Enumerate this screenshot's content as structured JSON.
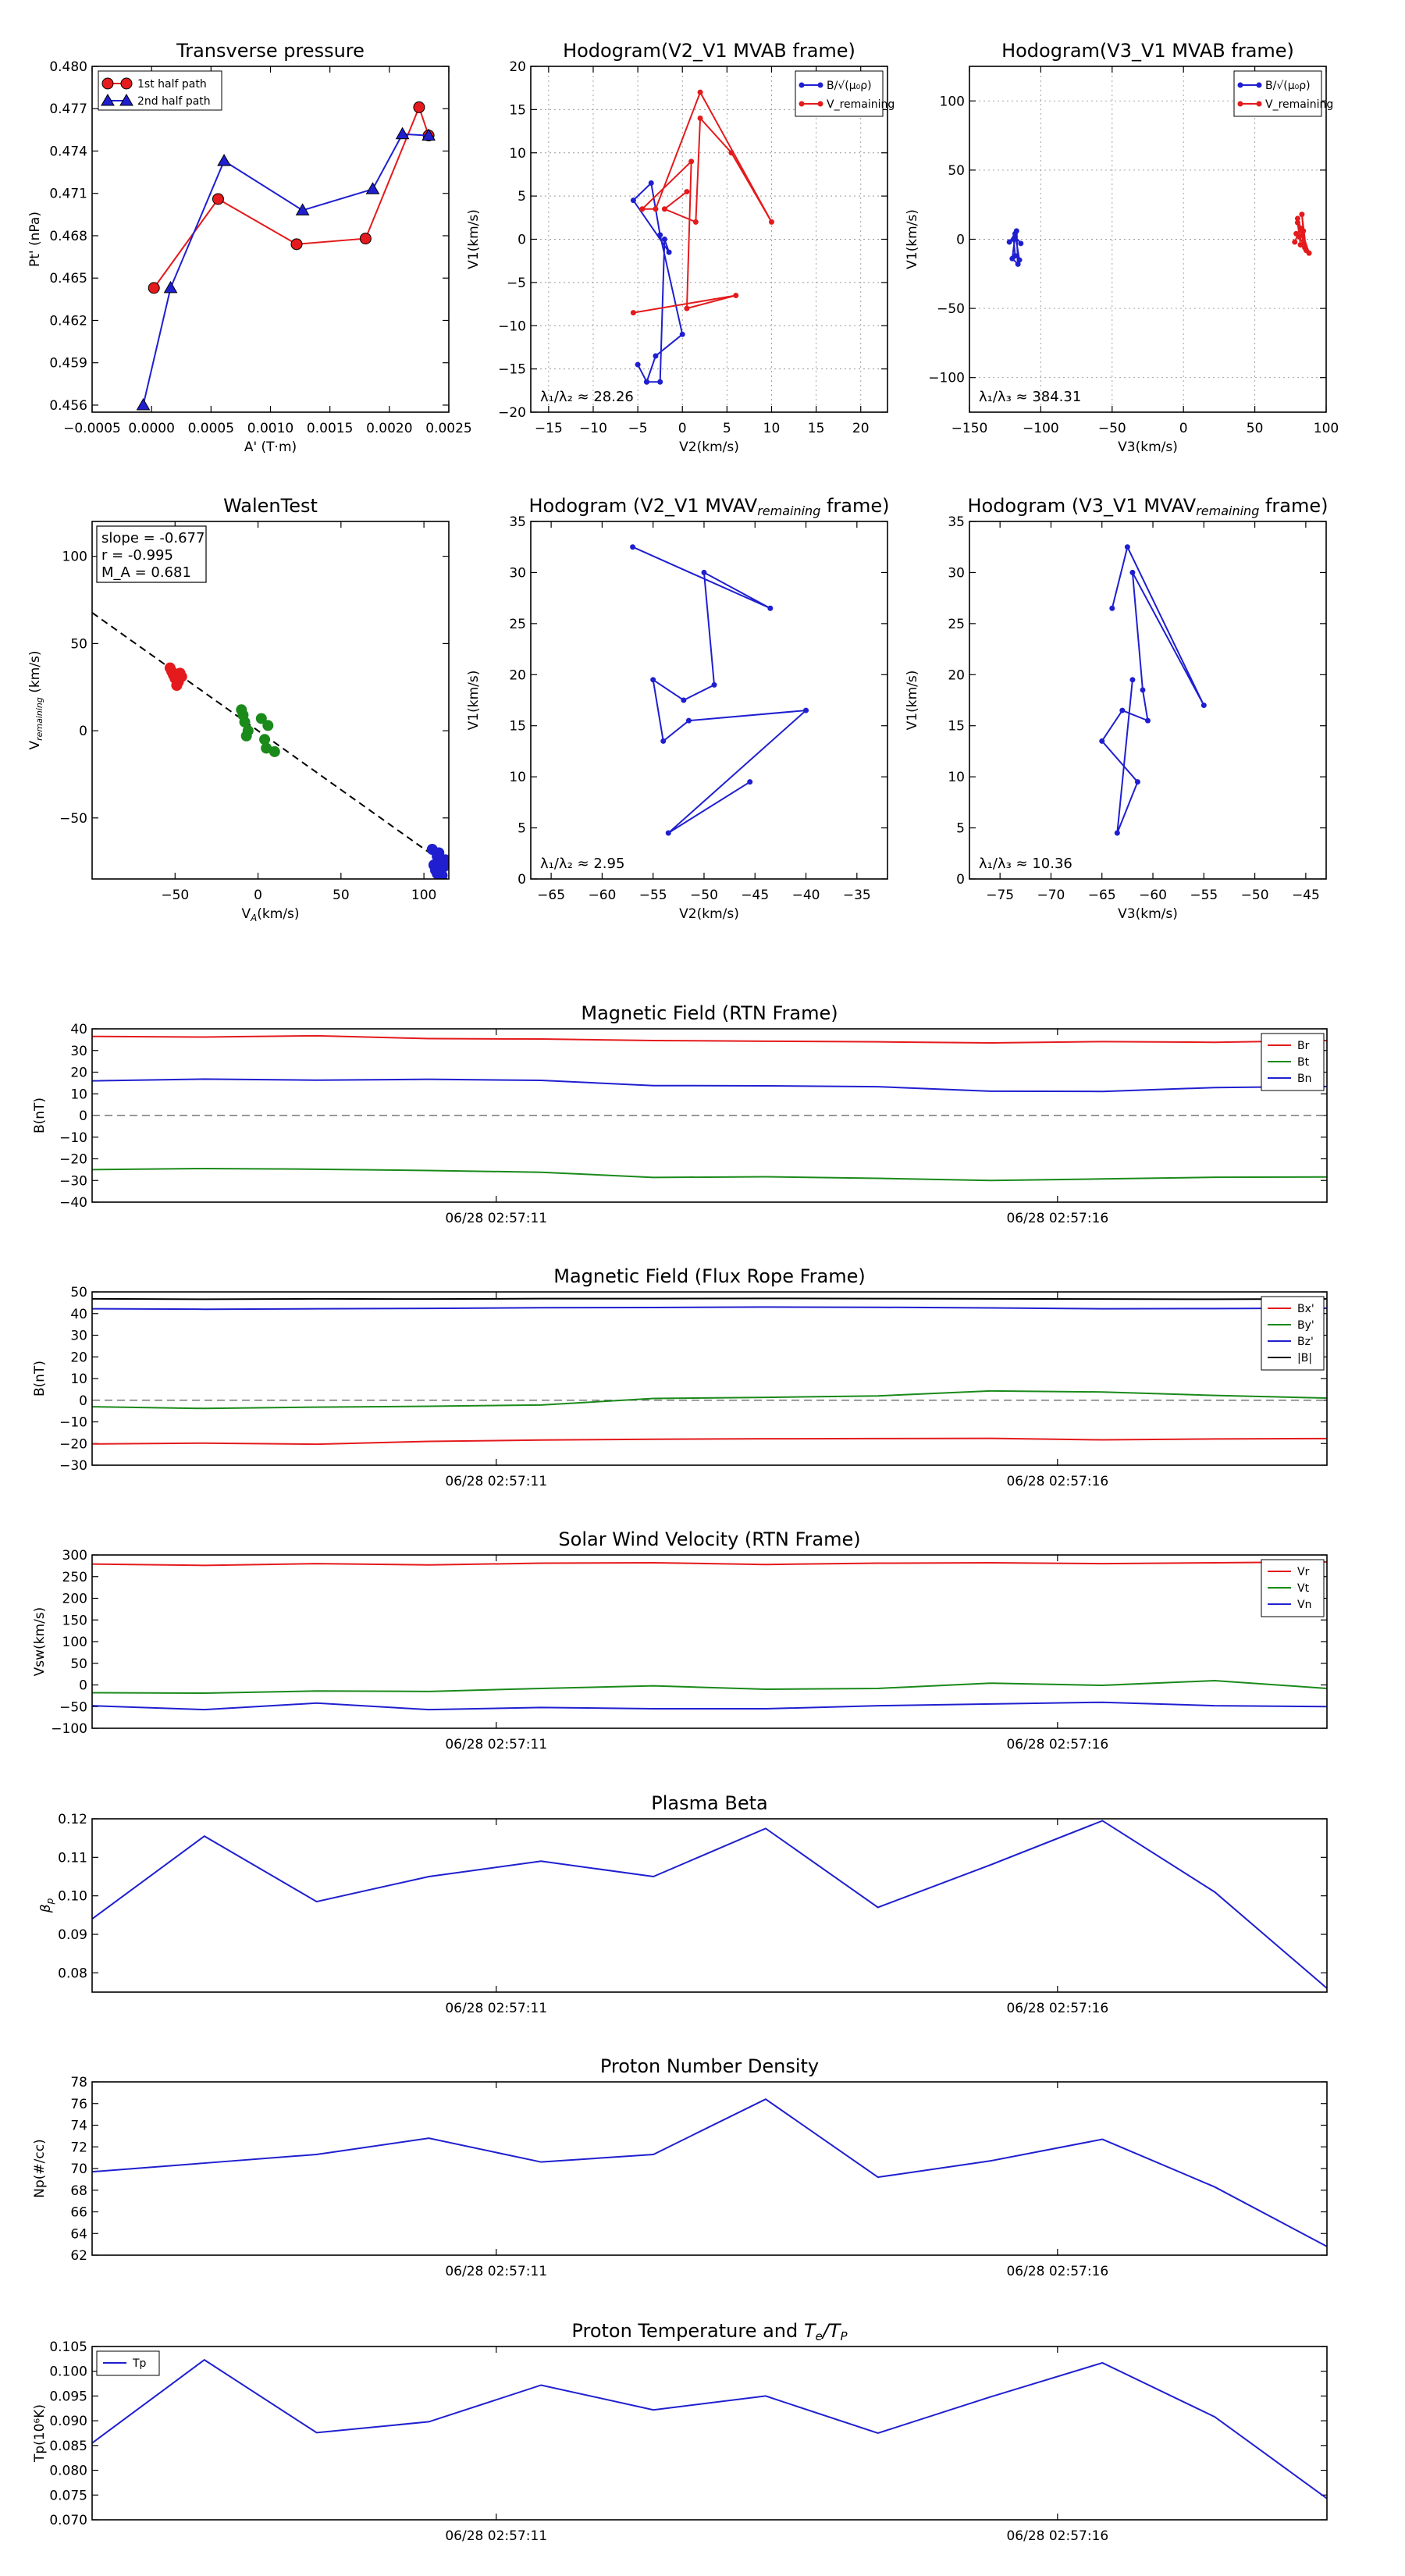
{
  "chart_data": [
    {
      "id": "pt",
      "type": "line",
      "title": "Transverse pressure",
      "xlabel": "A' (T·m)",
      "ylabel": "Pt' (nPa)",
      "xlim": [
        -0.0005,
        0.0025
      ],
      "ylim": [
        0.4555,
        0.48
      ],
      "xticks": [
        -0.0005,
        0.0,
        0.0005,
        0.001,
        0.0015,
        0.002,
        0.0025
      ],
      "xticklabels": [
        "−0.0005",
        "0.0000",
        "0.0005",
        "0.0010",
        "0.0015",
        "0.0020",
        "0.0025"
      ],
      "yticks": [
        0.456,
        0.459,
        0.462,
        0.465,
        0.468,
        0.471,
        0.474,
        0.477,
        0.48
      ],
      "yticklabels": [
        "0.456",
        "0.459",
        "0.462",
        "0.465",
        "0.468",
        "0.471",
        "0.474",
        "0.477",
        "0.480"
      ],
      "legend": "top-left",
      "grid": false,
      "series": [
        {
          "name": "1st half path",
          "color": "#e41a1c",
          "marker": "circle",
          "x": [
            2e-05,
            0.00056,
            0.00122,
            0.0018,
            0.00225,
            0.00233
          ],
          "y": [
            0.4643,
            0.4706,
            0.4674,
            0.4678,
            0.4771,
            0.4751
          ]
        },
        {
          "name": "2nd half path",
          "color": "#1f1fd0",
          "marker": "triangle",
          "x": [
            -7e-05,
            0.00016,
            0.00061,
            0.00127,
            0.00186,
            0.00211,
            0.00233
          ],
          "y": [
            0.456,
            0.4643,
            0.4733,
            0.4698,
            0.4713,
            0.4752,
            0.4751
          ]
        }
      ]
    },
    {
      "id": "h21",
      "type": "line",
      "title": "Hodogram(V2_V1 MVAB frame)",
      "xlabel": "V2(km/s)",
      "ylabel": "V1(km/s)",
      "xlim": [
        -17,
        23
      ],
      "ylim": [
        -20,
        20
      ],
      "xticks": [
        -15,
        -10,
        -5,
        0,
        5,
        10,
        15,
        20
      ],
      "xticklabels": [
        "−15",
        "−10",
        "−5",
        "0",
        "5",
        "10",
        "15",
        "20"
      ],
      "yticks": [
        -20,
        -15,
        -10,
        -5,
        0,
        5,
        10,
        15,
        20
      ],
      "yticklabels": [
        "−20",
        "−15",
        "−10",
        "−5",
        "0",
        "5",
        "10",
        "15",
        "20"
      ],
      "legend": "top-right",
      "grid": true,
      "annotation": "λ₁/λ₂ ≈ 28.26",
      "series": [
        {
          "name": "B/√(μ₀ρ)",
          "color": "#1f1fd0",
          "marker": "dot",
          "x": [
            -4,
            -2.5,
            -2,
            -1.5,
            -5.5,
            -3.5,
            -2.5,
            0,
            -3,
            -4,
            -5
          ],
          "y": [
            -16.5,
            -16.5,
            0,
            -1.5,
            4.5,
            6.5,
            0.5,
            -11,
            -13.5,
            -16.5,
            -14.5
          ]
        },
        {
          "name": "V_remaining",
          "color": "#e41a1c",
          "marker": "dot",
          "x": [
            -5.5,
            6,
            0.5,
            1,
            -4.5,
            -3,
            2,
            10,
            5.5,
            2,
            1.5,
            -2,
            0.5
          ],
          "y": [
            -8.5,
            -6.5,
            -8,
            9,
            3.5,
            3.5,
            17,
            2,
            10,
            14,
            2,
            3.5,
            5.5
          ]
        }
      ]
    },
    {
      "id": "h31",
      "type": "line",
      "title": "Hodogram(V3_V1 MVAB frame)",
      "xlabel": "V3(km/s)",
      "ylabel": "V1(km/s)",
      "xlim": [
        -150,
        100
      ],
      "ylim": [
        -125,
        125
      ],
      "xticks": [
        -150,
        -100,
        -50,
        0,
        50,
        100
      ],
      "xticklabels": [
        "−150",
        "−100",
        "−50",
        "0",
        "50",
        "100"
      ],
      "yticks": [
        -100,
        -50,
        0,
        50,
        100
      ],
      "yticklabels": [
        "−100",
        "−50",
        "0",
        "50",
        "100"
      ],
      "legend": "top-right",
      "grid": true,
      "annotation": "λ₁/λ₃ ≈ 384.31",
      "series": [
        {
          "name": "B/√(μ₀ρ)",
          "color": "#1f1fd0",
          "marker": "dot",
          "x": [
            -122,
            -118,
            -115,
            -118,
            -119,
            -117,
            -116,
            -120,
            -118,
            -114
          ],
          "y": [
            -2,
            4,
            -15,
            -12,
            0,
            6,
            -18,
            -14,
            2,
            -3
          ]
        },
        {
          "name": "V_remaining",
          "color": "#e41a1c",
          "marker": "dot",
          "x": [
            78,
            82,
            85,
            80,
            88,
            81,
            79,
            84,
            83,
            86,
            80,
            82
          ],
          "y": [
            -2,
            8,
            -6,
            15,
            -10,
            2,
            4,
            6,
            18,
            -8,
            12,
            -4
          ]
        }
      ]
    },
    {
      "id": "walen",
      "type": "scatter",
      "title": "WalenTest",
      "xlabel": "V_A(km/s)",
      "ylabel": "V_remaining (km/s)",
      "xlim": [
        -100,
        115
      ],
      "ylim": [
        -85,
        120
      ],
      "xticks": [
        -50,
        0,
        50,
        100
      ],
      "xticklabels": [
        "−50",
        "0",
        "50",
        "100"
      ],
      "yticks": [
        -50,
        0,
        50,
        100
      ],
      "yticklabels": [
        "−50",
        "0",
        "50",
        "100"
      ],
      "grid": false,
      "stats": [
        "slope = -0.677",
        "r = -0.995",
        "M_A = 0.681"
      ],
      "fit": {
        "slope": -0.677,
        "intercept": 0.0
      },
      "series": [
        {
          "name": "red",
          "color": "#e41a1c",
          "x": [
            -53,
            -50,
            -47,
            -49,
            -52,
            -48,
            -46,
            -51
          ],
          "y": [
            36,
            30,
            33,
            26,
            34,
            28,
            31,
            32
          ]
        },
        {
          "name": "green",
          "color": "#1a8a1a",
          "x": [
            -10,
            -8,
            -6,
            4,
            6,
            2,
            -7,
            10,
            5,
            -9
          ],
          "y": [
            12,
            5,
            0,
            -5,
            3,
            7,
            -3,
            -12,
            -10,
            9
          ]
        },
        {
          "name": "blue",
          "color": "#1f1fd0",
          "x": [
            105,
            108,
            110,
            112,
            107,
            109,
            111,
            106,
            113,
            108
          ],
          "y": [
            -68,
            -72,
            -75,
            -78,
            -80,
            -70,
            -83,
            -77,
            -74,
            -82
          ]
        }
      ]
    },
    {
      "id": "h21r",
      "type": "line",
      "title": "Hodogram (V2_V1 MVAV_remaining frame)",
      "xlabel": "V2(km/s)",
      "ylabel": "V1(km/s)",
      "xlim": [
        -67,
        -32
      ],
      "ylim": [
        0,
        35
      ],
      "xticks": [
        -65,
        -60,
        -55,
        -50,
        -45,
        -40,
        -35
      ],
      "xticklabels": [
        "−65",
        "−60",
        "−55",
        "−50",
        "−45",
        "−40",
        "−35"
      ],
      "yticks": [
        0,
        5,
        10,
        15,
        20,
        25,
        30,
        35
      ],
      "yticklabels": [
        "0",
        "5",
        "10",
        "15",
        "20",
        "25",
        "30",
        "35"
      ],
      "grid": false,
      "annotation": "λ₁/λ₂ ≈ 2.95",
      "series": [
        {
          "name": "blue",
          "color": "#1f1fd0",
          "marker": "dot",
          "x": [
            -57,
            -43.5,
            -50,
            -49,
            -52,
            -55,
            -54,
            -51.5,
            -40,
            -53.5,
            -45.5
          ],
          "y": [
            32.5,
            26.5,
            30,
            19,
            17.5,
            19.5,
            13.5,
            15.5,
            16.5,
            4.5,
            9.5
          ]
        }
      ]
    },
    {
      "id": "h31r",
      "type": "line",
      "title": "Hodogram (V3_V1 MVAV_remaining frame)",
      "xlabel": "V3(km/s)",
      "ylabel": "V1(km/s)",
      "xlim": [
        -78,
        -43
      ],
      "ylim": [
        0,
        35
      ],
      "xticks": [
        -75,
        -70,
        -65,
        -60,
        -55,
        -50,
        -45
      ],
      "xticklabels": [
        "−75",
        "−70",
        "−65",
        "−60",
        "−55",
        "−50",
        "−45"
      ],
      "yticks": [
        0,
        5,
        10,
        15,
        20,
        25,
        30,
        35
      ],
      "yticklabels": [
        "0",
        "5",
        "10",
        "15",
        "20",
        "25",
        "30",
        "35"
      ],
      "grid": false,
      "annotation": "λ₁/λ₃ ≈ 10.36",
      "series": [
        {
          "name": "blue",
          "color": "#1f1fd0",
          "marker": "dot",
          "x": [
            -64,
            -62.5,
            -55,
            -62,
            -61,
            -60.5,
            -63,
            -65,
            -61.5,
            -63.5,
            -62
          ],
          "y": [
            26.5,
            32.5,
            17,
            30,
            18.5,
            15.5,
            16.5,
            13.5,
            9.5,
            4.5,
            19.5
          ]
        }
      ]
    },
    {
      "id": "brtn",
      "type": "line",
      "title": "Magnetic Field (RTN Frame)",
      "ylabel": "B(nT)",
      "ylim": [
        -40,
        40
      ],
      "yticks": [
        -40,
        -30,
        -20,
        -10,
        0,
        10,
        20,
        30,
        40
      ],
      "yticklabels": [
        "−40",
        "−30",
        "−20",
        "−10",
        "0",
        "10",
        "20",
        "30",
        "40"
      ],
      "xtick_index": [
        3.6,
        8.6
      ],
      "xticklabels": [
        "06/28 02:57:11",
        "06/28 02:57:16"
      ],
      "zero_line": true,
      "legend": "top-right",
      "series": [
        {
          "name": "Br",
          "color": "#e41a1c",
          "values": [
            36.5,
            36.2,
            36.8,
            35.5,
            35.3,
            34.6,
            34.3,
            34.0,
            33.5,
            34.1,
            33.8,
            34.6
          ]
        },
        {
          "name": "Bt",
          "color": "#1a8a1a",
          "values": [
            -25.0,
            -24.5,
            -24.8,
            -25.4,
            -26.2,
            -28.6,
            -28.3,
            -29.0,
            -30.0,
            -29.3,
            -28.5,
            -28.4
          ]
        },
        {
          "name": "Bn",
          "color": "#1f1fd0",
          "values": [
            16.0,
            16.8,
            16.3,
            16.7,
            16.2,
            13.8,
            13.7,
            13.3,
            11.2,
            11.1,
            12.9,
            13.4
          ]
        }
      ]
    },
    {
      "id": "bfr",
      "type": "line",
      "title": "Magnetic Field (Flux Rope Frame)",
      "ylabel": "B(nT)",
      "ylim": [
        -30,
        50
      ],
      "yticks": [
        -30,
        -20,
        -10,
        0,
        10,
        20,
        30,
        40,
        50
      ],
      "yticklabels": [
        "−30",
        "−20",
        "−10",
        "0",
        "10",
        "20",
        "30",
        "40",
        "50"
      ],
      "xtick_index": [
        3.6,
        8.6
      ],
      "xticklabels": [
        "06/28 02:57:11",
        "06/28 02:57:16"
      ],
      "zero_line": true,
      "legend": "top-right",
      "series": [
        {
          "name": "Bx'",
          "color": "#e41a1c",
          "values": [
            -20.2,
            -19.8,
            -20.3,
            -19.0,
            -18.4,
            -18.0,
            -17.8,
            -17.7,
            -17.6,
            -18.3,
            -17.9,
            -17.7
          ]
        },
        {
          "name": "By'",
          "color": "#1a8a1a",
          "values": [
            -3.0,
            -3.8,
            -3.2,
            -2.8,
            -2.2,
            0.8,
            1.3,
            2.0,
            4.3,
            3.8,
            2.2,
            1.0
          ]
        },
        {
          "name": "Bz'",
          "color": "#1f1fd0",
          "values": [
            42.2,
            42.0,
            42.2,
            42.4,
            42.7,
            42.8,
            43.0,
            42.9,
            42.6,
            42.2,
            42.3,
            42.5
          ]
        },
        {
          "name": "|B|",
          "color": "#000000",
          "values": [
            46.8,
            46.6,
            46.8,
            46.7,
            46.9,
            46.9,
            47.0,
            46.9,
            46.8,
            46.7,
            46.6,
            46.8
          ]
        }
      ]
    },
    {
      "id": "vsw",
      "type": "line",
      "title": "Solar Wind Velocity (RTN Frame)",
      "ylabel": "Vsw(km/s)",
      "ylim": [
        -100,
        300
      ],
      "yticks": [
        -100,
        -50,
        0,
        50,
        100,
        150,
        200,
        250,
        300
      ],
      "yticklabels": [
        "−100",
        "−50",
        "0",
        "50",
        "100",
        "150",
        "200",
        "250",
        "300"
      ],
      "xtick_index": [
        3.6,
        8.6
      ],
      "xticklabels": [
        "06/28 02:57:11",
        "06/28 02:57:16"
      ],
      "zero_line": false,
      "legend": "top-right",
      "series": [
        {
          "name": "Vr",
          "color": "#e41a1c",
          "values": [
            279,
            276,
            280,
            277,
            281,
            282,
            278,
            281,
            282,
            280,
            282,
            284
          ]
        },
        {
          "name": "Vt",
          "color": "#1a8a1a",
          "values": [
            -18,
            -19,
            -14,
            -15,
            -8,
            -2,
            -10,
            -8,
            4,
            -1,
            10,
            -8
          ]
        },
        {
          "name": "Vn",
          "color": "#1f1fd0",
          "values": [
            -48,
            -57,
            -42,
            -57,
            -52,
            -55,
            -55,
            -48,
            -44,
            -40,
            -48,
            -50
          ]
        }
      ]
    },
    {
      "id": "beta",
      "type": "line",
      "title": "Plasma Beta",
      "ylabel": "βp",
      "ylim": [
        0.075,
        0.12
      ],
      "yticks": [
        0.08,
        0.09,
        0.1,
        0.11,
        0.12
      ],
      "yticklabels": [
        "0.08",
        "0.09",
        "0.10",
        "0.11",
        "0.12"
      ],
      "xtick_index": [
        3.6,
        8.6
      ],
      "xticklabels": [
        "06/28 02:57:11",
        "06/28 02:57:16"
      ],
      "zero_line": false,
      "series": [
        {
          "name": "beta",
          "color": "#1f1fd0",
          "values": [
            0.094,
            0.1155,
            0.0985,
            0.105,
            0.109,
            0.105,
            0.1175,
            0.097,
            0.108,
            0.1195,
            0.101,
            0.076
          ]
        }
      ]
    },
    {
      "id": "np",
      "type": "line",
      "title": "Proton Number Density",
      "ylabel": "Np(#/cc)",
      "ylim": [
        62,
        78
      ],
      "yticks": [
        62,
        64,
        66,
        68,
        70,
        72,
        74,
        76,
        78
      ],
      "yticklabels": [
        "62",
        "64",
        "66",
        "68",
        "70",
        "72",
        "74",
        "76",
        "78"
      ],
      "xtick_index": [
        3.6,
        8.6
      ],
      "xticklabels": [
        "06/28 02:57:11",
        "06/28 02:57:16"
      ],
      "zero_line": false,
      "series": [
        {
          "name": "Np",
          "color": "#1f1fd0",
          "values": [
            69.7,
            70.5,
            71.3,
            72.8,
            70.6,
            71.3,
            76.4,
            69.2,
            70.7,
            72.7,
            68.3,
            62.8
          ]
        }
      ]
    },
    {
      "id": "tp",
      "type": "line",
      "title": "Proton Temperature and Te/Tp",
      "ylabel": "Tp(10⁶K)",
      "ylim": [
        0.07,
        0.105
      ],
      "yticks": [
        0.07,
        0.075,
        0.08,
        0.085,
        0.09,
        0.095,
        0.1,
        0.105
      ],
      "yticklabels": [
        "0.070",
        "0.075",
        "0.080",
        "0.085",
        "0.090",
        "0.095",
        "0.100",
        "0.105"
      ],
      "xtick_index": [
        3.6,
        8.6
      ],
      "xticklabels": [
        "06/28 02:57:11",
        "06/28 02:57:16"
      ],
      "zero_line": false,
      "legend": "top-left",
      "series": [
        {
          "name": "Tp",
          "color": "#1f1fd0",
          "values": [
            0.0855,
            0.1023,
            0.0876,
            0.0898,
            0.0972,
            0.0922,
            0.095,
            0.0875,
            0.0948,
            0.1017,
            0.0908,
            0.0743
          ]
        }
      ]
    }
  ]
}
